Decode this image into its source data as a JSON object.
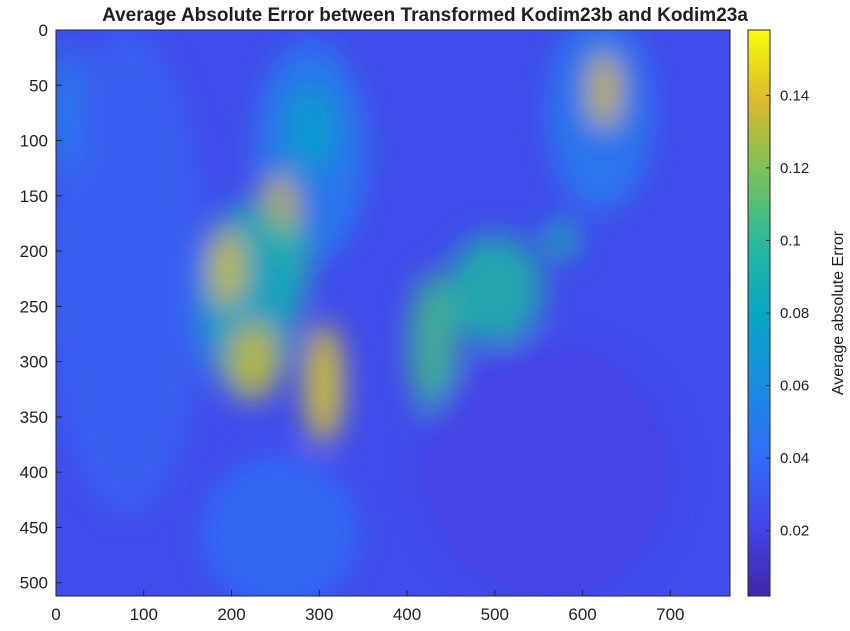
{
  "chart_data": {
    "type": "heatmap",
    "title": "Average Absolute Error between Transformed Kodim23b and Kodim23a",
    "xlabel": "",
    "ylabel": "",
    "x_ticks": [
      0,
      100,
      200,
      300,
      400,
      500,
      600,
      700
    ],
    "y_ticks": [
      0,
      50,
      100,
      150,
      200,
      250,
      300,
      350,
      400,
      450,
      500
    ],
    "xlim": [
      0,
      768
    ],
    "ylim": [
      512,
      0
    ],
    "y_reversed": true,
    "colorbar": {
      "label": "Average absolute Error",
      "ticks": [
        0.02,
        0.04,
        0.06,
        0.08,
        0.1,
        0.12,
        0.14
      ],
      "tick_labels": [
        "0.02",
        "0.04",
        "0.06",
        "0.08",
        "0.1",
        "0.12",
        "0.14"
      ],
      "range": [
        0.002,
        0.158
      ],
      "colormap": "parula"
    },
    "background_level": 0.025,
    "regions": [
      {
        "kind": "ellipse",
        "cx": 80,
        "cy": 220,
        "rx": 90,
        "ry": 220,
        "level": 0.035
      },
      {
        "kind": "ellipse",
        "cx": 10,
        "cy": 70,
        "rx": 15,
        "ry": 60,
        "level": 0.055
      },
      {
        "kind": "ellipse",
        "cx": 290,
        "cy": 110,
        "rx": 65,
        "ry": 100,
        "level": 0.05
      },
      {
        "kind": "ellipse",
        "cx": 290,
        "cy": 90,
        "rx": 30,
        "ry": 40,
        "level": 0.075
      },
      {
        "kind": "ellipse",
        "cx": 255,
        "cy": 170,
        "rx": 22,
        "ry": 40,
        "level": 0.135
      },
      {
        "kind": "ellipse",
        "cx": 270,
        "cy": 215,
        "rx": 18,
        "ry": 40,
        "level": 0.1
      },
      {
        "kind": "ellipse",
        "cx": 305,
        "cy": 320,
        "rx": 22,
        "ry": 55,
        "level": 0.145
      },
      {
        "kind": "ellipse",
        "cx": 620,
        "cy": 75,
        "rx": 60,
        "ry": 90,
        "level": 0.05
      },
      {
        "kind": "ellipse",
        "cx": 625,
        "cy": 55,
        "rx": 18,
        "ry": 35,
        "level": 0.14
      },
      {
        "kind": "ellipse",
        "cx": 220,
        "cy": 245,
        "rx": 55,
        "ry": 90,
        "level": 0.085
      },
      {
        "kind": "ellipse",
        "cx": 225,
        "cy": 300,
        "rx": 30,
        "ry": 35,
        "level": 0.135
      },
      {
        "kind": "ellipse",
        "cx": 195,
        "cy": 215,
        "rx": 20,
        "ry": 35,
        "level": 0.14
      },
      {
        "kind": "ellipse",
        "cx": 430,
        "cy": 285,
        "rx": 28,
        "ry": 65,
        "level": 0.105
      },
      {
        "kind": "ellipse",
        "cx": 500,
        "cy": 235,
        "rx": 55,
        "ry": 50,
        "level": 0.095
      },
      {
        "kind": "ellipse",
        "cx": 575,
        "cy": 190,
        "rx": 20,
        "ry": 18,
        "level": 0.09
      },
      {
        "kind": "ellipse",
        "cx": 255,
        "cy": 455,
        "rx": 90,
        "ry": 70,
        "level": 0.04
      },
      {
        "kind": "ellipse",
        "cx": 560,
        "cy": 400,
        "rx": 150,
        "ry": 120,
        "level": 0.02
      }
    ]
  }
}
